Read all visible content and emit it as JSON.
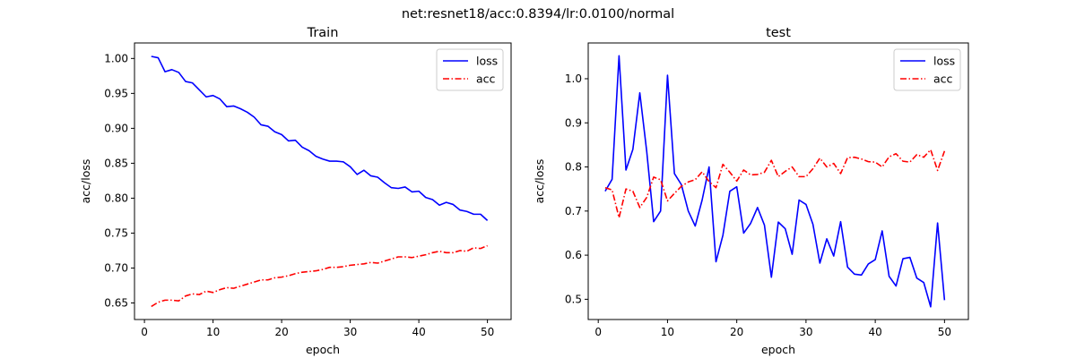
{
  "suptitle": "net:resnet18/acc:0.8394/lr:0.0100/normal",
  "colors": {
    "loss": "#0000ff",
    "acc": "#ff0000",
    "axes": "#000000",
    "background": "#ffffff"
  },
  "chart_data": [
    {
      "type": "line",
      "title": "Train",
      "xlabel": "epoch",
      "ylabel": "acc/loss",
      "xlim": [
        -1.45,
        53.45
      ],
      "ylim": [
        0.6263,
        1.0222
      ],
      "xticks": [
        0,
        10,
        20,
        30,
        40,
        50
      ],
      "yticks": [
        0.65,
        0.7,
        0.75,
        0.8,
        0.85,
        0.9,
        0.95,
        1.0
      ],
      "ytick_labels": [
        "0.65",
        "0.70",
        "0.75",
        "0.80",
        "0.85",
        "0.90",
        "0.95",
        "1.00"
      ],
      "grid": false,
      "legend": "upper right",
      "x": [
        1,
        2,
        3,
        4,
        5,
        6,
        7,
        8,
        9,
        10,
        11,
        12,
        13,
        14,
        15,
        16,
        17,
        18,
        19,
        20,
        21,
        22,
        23,
        24,
        25,
        26,
        27,
        28,
        29,
        30,
        31,
        32,
        33,
        34,
        35,
        36,
        37,
        38,
        39,
        40,
        41,
        42,
        43,
        44,
        45,
        46,
        47,
        48,
        49,
        50
      ],
      "series": [
        {
          "name": "loss",
          "style": "solid",
          "color": "#0000ff",
          "values": [
            1.003,
            1.001,
            0.981,
            0.984,
            0.98,
            0.967,
            0.965,
            0.955,
            0.945,
            0.947,
            0.942,
            0.931,
            0.932,
            0.928,
            0.923,
            0.916,
            0.905,
            0.903,
            0.895,
            0.891,
            0.882,
            0.883,
            0.873,
            0.868,
            0.86,
            0.856,
            0.853,
            0.853,
            0.852,
            0.845,
            0.834,
            0.84,
            0.832,
            0.83,
            0.822,
            0.815,
            0.814,
            0.816,
            0.809,
            0.81,
            0.801,
            0.798,
            0.79,
            0.794,
            0.791,
            0.783,
            0.781,
            0.777,
            0.777,
            0.768
          ]
        },
        {
          "name": "acc",
          "style": "dashdot",
          "color": "#ff0000",
          "values": [
            0.645,
            0.651,
            0.654,
            0.654,
            0.653,
            0.66,
            0.663,
            0.662,
            0.667,
            0.665,
            0.669,
            0.672,
            0.671,
            0.674,
            0.677,
            0.68,
            0.683,
            0.683,
            0.686,
            0.687,
            0.689,
            0.692,
            0.694,
            0.695,
            0.696,
            0.698,
            0.701,
            0.701,
            0.702,
            0.704,
            0.705,
            0.706,
            0.708,
            0.707,
            0.71,
            0.713,
            0.716,
            0.716,
            0.715,
            0.717,
            0.719,
            0.722,
            0.724,
            0.722,
            0.722,
            0.725,
            0.724,
            0.729,
            0.728,
            0.732
          ]
        }
      ]
    },
    {
      "type": "line",
      "title": "test",
      "xlabel": "epoch",
      "ylabel": "acc/loss",
      "xlim": [
        -1.45,
        53.45
      ],
      "ylim": [
        0.4541,
        1.0811
      ],
      "xticks": [
        0,
        10,
        20,
        30,
        40,
        50
      ],
      "yticks": [
        0.5,
        0.6,
        0.7,
        0.8,
        0.9,
        1.0
      ],
      "ytick_labels": [
        "0.5",
        "0.6",
        "0.7",
        "0.8",
        "0.9",
        "1.0"
      ],
      "grid": false,
      "legend": "upper right",
      "x": [
        1,
        2,
        3,
        4,
        5,
        6,
        7,
        8,
        9,
        10,
        11,
        12,
        13,
        14,
        15,
        16,
        17,
        18,
        19,
        20,
        21,
        22,
        23,
        24,
        25,
        26,
        27,
        28,
        29,
        30,
        31,
        32,
        33,
        34,
        35,
        36,
        37,
        38,
        39,
        40,
        41,
        42,
        43,
        44,
        45,
        46,
        47,
        48,
        49,
        50
      ],
      "series": [
        {
          "name": "loss",
          "style": "solid",
          "color": "#0000ff",
          "values": [
            0.745,
            0.772,
            1.052,
            0.793,
            0.84,
            0.968,
            0.835,
            0.676,
            0.7,
            1.008,
            0.785,
            0.76,
            0.7,
            0.666,
            0.725,
            0.8,
            0.585,
            0.645,
            0.745,
            0.755,
            0.65,
            0.672,
            0.708,
            0.668,
            0.55,
            0.675,
            0.66,
            0.602,
            0.725,
            0.715,
            0.67,
            0.582,
            0.637,
            0.598,
            0.676,
            0.573,
            0.557,
            0.555,
            0.58,
            0.59,
            0.655,
            0.552,
            0.53,
            0.592,
            0.595,
            0.548,
            0.538,
            0.483,
            0.673,
            0.498
          ]
        },
        {
          "name": "acc",
          "style": "dashdot",
          "color": "#ff0000",
          "values": [
            0.753,
            0.748,
            0.685,
            0.75,
            0.745,
            0.708,
            0.731,
            0.777,
            0.771,
            0.723,
            0.74,
            0.756,
            0.766,
            0.771,
            0.789,
            0.767,
            0.753,
            0.806,
            0.788,
            0.768,
            0.793,
            0.782,
            0.783,
            0.788,
            0.815,
            0.778,
            0.79,
            0.8,
            0.778,
            0.778,
            0.796,
            0.82,
            0.8,
            0.808,
            0.785,
            0.821,
            0.822,
            0.818,
            0.812,
            0.811,
            0.8,
            0.823,
            0.83,
            0.813,
            0.811,
            0.828,
            0.822,
            0.839,
            0.792,
            0.836
          ]
        }
      ]
    }
  ]
}
